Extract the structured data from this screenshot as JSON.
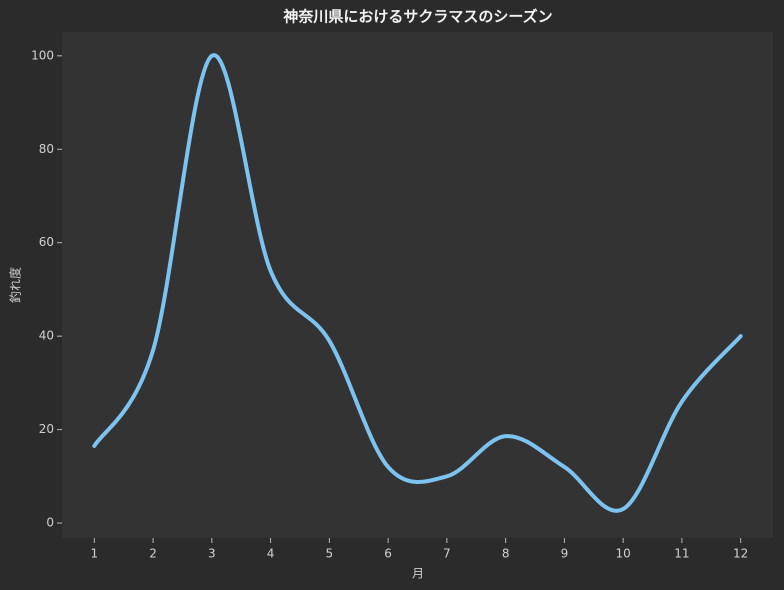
{
  "chart_data": {
    "type": "line",
    "title": "神奈川県におけるサクラマスのシーズン",
    "x_label": "月",
    "y_label": "釣れ度",
    "x": [
      1,
      2,
      3,
      4,
      5,
      6,
      7,
      8,
      9,
      10,
      11,
      12
    ],
    "series": [
      {
        "name": "釣れ度",
        "color": "#7cc3f0",
        "values": [
          16.5,
          37,
          100,
          54,
          39,
          12,
          10,
          18.6,
          12,
          3,
          26,
          40
        ]
      }
    ],
    "xlim": [
      0.45,
      12.55
    ],
    "ylim": [
      -3.2,
      105.1
    ],
    "xticks": [
      1,
      2,
      3,
      4,
      5,
      6,
      7,
      8,
      9,
      10,
      11,
      12
    ],
    "yticks": [
      0,
      20,
      40,
      60,
      80,
      100
    ],
    "grid": false,
    "smooth": true
  }
}
